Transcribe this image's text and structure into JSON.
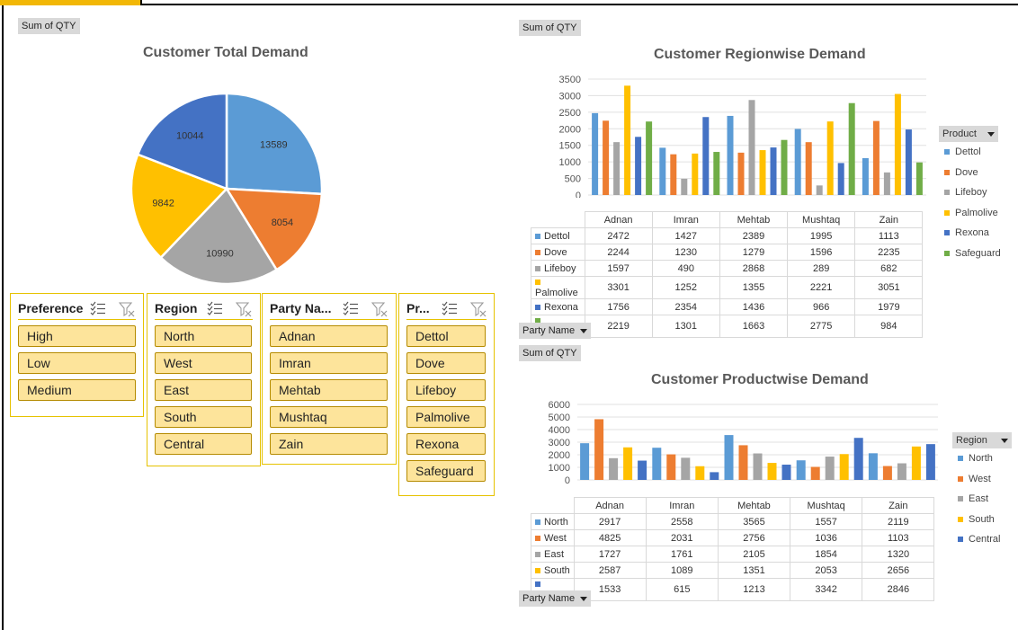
{
  "colors": {
    "blue_light": "#5b9bd5",
    "orange": "#ed7d31",
    "gray": "#a5a5a5",
    "gold": "#ffc000",
    "blue_dark": "#4472c4",
    "green": "#70ad47",
    "slicer_fill": "#fde49b",
    "slicer_border": "#e6c200"
  },
  "labels": {
    "sum_qty": "Sum of QTY",
    "party_name": "Party Name",
    "product": "Product",
    "region": "Region"
  },
  "slicers": [
    {
      "title": "Preference",
      "items": [
        "High",
        "Low",
        "Medium"
      ]
    },
    {
      "title": "Region",
      "items": [
        "North",
        "West",
        "East",
        "South",
        "Central"
      ]
    },
    {
      "title": "Party Na...",
      "items": [
        "Adnan",
        "Imran",
        "Mehtab",
        "Mushtaq",
        "Zain"
      ]
    },
    {
      "title": "Pr...",
      "items": [
        "Dettol",
        "Dove",
        "Lifeboy",
        "Palmolive",
        "Rexona",
        "Safeguard"
      ]
    }
  ],
  "chart_data": [
    {
      "type": "pie",
      "title": "Customer Total Demand",
      "slices": [
        {
          "value": 13589,
          "color": "#5b9bd5"
        },
        {
          "value": 8054,
          "color": "#ed7d31"
        },
        {
          "value": 10990,
          "color": "#a5a5a5"
        },
        {
          "value": 9842,
          "color": "#ffc000"
        },
        {
          "value": 10044,
          "color": "#4472c4"
        }
      ]
    },
    {
      "type": "bar",
      "title": "Customer Regionwise Demand",
      "categories": [
        "Adnan",
        "Imran",
        "Mehtab",
        "Mushtaq",
        "Zain"
      ],
      "ylim": [
        0,
        3500
      ],
      "yticks": [
        "0",
        "500",
        "1000",
        "1500",
        "2000",
        "2500",
        "3000",
        "3500"
      ],
      "legend_title": "Product",
      "series": [
        {
          "name": "Dettol",
          "color": "#5b9bd5",
          "values": [
            2472,
            1427,
            2389,
            1995,
            1113
          ]
        },
        {
          "name": "Dove",
          "color": "#ed7d31",
          "values": [
            2244,
            1230,
            1279,
            1596,
            2235
          ]
        },
        {
          "name": "Lifeboy",
          "color": "#a5a5a5",
          "values": [
            1597,
            490,
            2868,
            289,
            682
          ]
        },
        {
          "name": "Palmolive",
          "color": "#ffc000",
          "values": [
            3301,
            1252,
            1355,
            2221,
            3051
          ]
        },
        {
          "name": "Rexona",
          "color": "#4472c4",
          "values": [
            1756,
            2354,
            1436,
            966,
            1979
          ]
        },
        {
          "name": "Safeguard",
          "color": "#70ad47",
          "values": [
            2219,
            1301,
            1663,
            2775,
            984
          ]
        }
      ]
    },
    {
      "type": "bar",
      "title": "Customer Productwise Demand",
      "categories": [
        "Adnan",
        "Imran",
        "Mehtab",
        "Mushtaq",
        "Zain"
      ],
      "ylim": [
        0,
        6000
      ],
      "yticks": [
        "0",
        "1000",
        "2000",
        "3000",
        "4000",
        "5000",
        "6000"
      ],
      "legend_title": "Region",
      "series": [
        {
          "name": "North",
          "color": "#5b9bd5",
          "values": [
            2917,
            2558,
            3565,
            1557,
            2119
          ]
        },
        {
          "name": "West",
          "color": "#ed7d31",
          "values": [
            4825,
            2031,
            2756,
            1036,
            1103
          ]
        },
        {
          "name": "East",
          "color": "#a5a5a5",
          "values": [
            1727,
            1761,
            2105,
            1854,
            1320
          ]
        },
        {
          "name": "South",
          "color": "#ffc000",
          "values": [
            2587,
            1089,
            1351,
            2053,
            2656
          ]
        },
        {
          "name": "Central",
          "color": "#4472c4",
          "values": [
            1533,
            615,
            1213,
            3342,
            2846
          ]
        }
      ]
    }
  ]
}
